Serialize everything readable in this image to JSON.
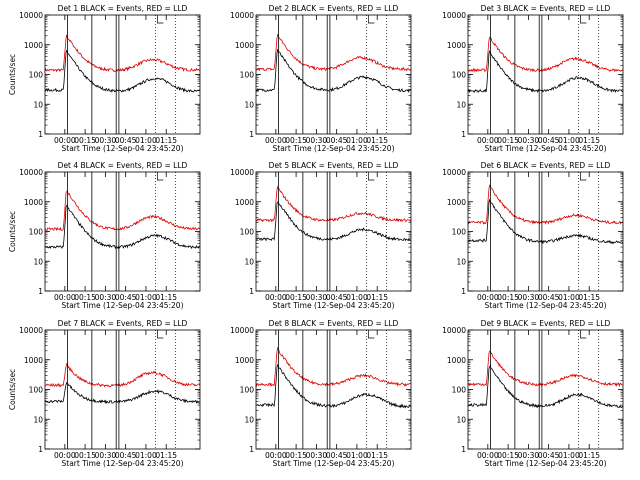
{
  "figure": {
    "start_time_label": "Start Time (12-Sep-04 23:45:20)",
    "ylabel": "Counts/sec",
    "series_note": "BLACK = Events, RED = LLD"
  },
  "chart_data": [
    {
      "type": "line",
      "title": "Det 1 BLACK = Events, RED = LLD",
      "xlabel": "Start Time (12-Sep-04 23:45:20)",
      "ylabel": "Counts/sec",
      "y_scale": "log",
      "ylim": [
        1,
        10000
      ],
      "y_ticks": [
        "1",
        "10",
        "100",
        "1000",
        "10000"
      ],
      "x_ticks": [
        "00:00",
        "00:15",
        "00:30",
        "00:45",
        "01:00",
        "01:15"
      ],
      "xlim_minutes": [
        -14.67,
        100
      ],
      "solid_vlines": [
        "00:02",
        "00:20",
        "00:38",
        "00:40"
      ],
      "dotted_vlines": [
        "01:07",
        "01:22"
      ],
      "series": [
        {
          "name": "RED = LLD",
          "color": "#dd0000",
          "baseline": 140,
          "peak": 2100,
          "peak_time": "00:01",
          "bump": 320,
          "bump_time": "01:05",
          "end": 160
        },
        {
          "name": "BLACK = Events",
          "color": "#000000",
          "baseline": 30,
          "peak": 650,
          "peak_time": "00:01",
          "bump": 75,
          "bump_time": "01:07",
          "end": 28
        }
      ]
    },
    {
      "type": "line",
      "title": "Det 2 BLACK = Events, RED = LLD",
      "xlabel": "Start Time (12-Sep-04 23:45:20)",
      "ylabel": "Counts/sec",
      "y_scale": "log",
      "ylim": [
        1,
        10000
      ],
      "y_ticks": [
        "1",
        "10",
        "100",
        "1000",
        "10000"
      ],
      "x_ticks": [
        "00:00",
        "00:15",
        "00:30",
        "00:45",
        "01:00",
        "01:15"
      ],
      "xlim_minutes": [
        -14.67,
        100
      ],
      "solid_vlines": [
        "00:02",
        "00:20",
        "00:38",
        "00:40"
      ],
      "dotted_vlines": [
        "01:07",
        "01:22"
      ],
      "series": [
        {
          "name": "RED = LLD",
          "color": "#dd0000",
          "baseline": 150,
          "peak": 2200,
          "peak_time": "00:01",
          "bump": 380,
          "bump_time": "01:03",
          "end": 170
        },
        {
          "name": "BLACK = Events",
          "color": "#000000",
          "baseline": 30,
          "peak": 700,
          "peak_time": "00:01",
          "bump": 85,
          "bump_time": "01:05",
          "end": 30
        }
      ]
    },
    {
      "type": "line",
      "title": "Det 3 BLACK = Events, RED = LLD",
      "xlabel": "Start Time (12-Sep-04 23:45:20)",
      "ylabel": "Counts/sec",
      "y_scale": "log",
      "ylim": [
        1,
        10000
      ],
      "y_ticks": [
        "1",
        "10",
        "100",
        "1000",
        "10000"
      ],
      "x_ticks": [
        "00:00",
        "00:15",
        "00:30",
        "00:45",
        "01:00",
        "01:15"
      ],
      "xlim_minutes": [
        -14.67,
        100
      ],
      "solid_vlines": [
        "00:02",
        "00:20",
        "00:38",
        "00:40"
      ],
      "dotted_vlines": [
        "01:07",
        "01:22"
      ],
      "series": [
        {
          "name": "RED = LLD",
          "color": "#dd0000",
          "baseline": 140,
          "peak": 1900,
          "peak_time": "00:01",
          "bump": 350,
          "bump_time": "01:05",
          "end": 150
        },
        {
          "name": "BLACK = Events",
          "color": "#000000",
          "baseline": 28,
          "peak": 600,
          "peak_time": "00:01",
          "bump": 80,
          "bump_time": "01:07",
          "end": 30
        }
      ]
    },
    {
      "type": "line",
      "title": "Det 4 BLACK = Events, RED = LLD",
      "xlabel": "Start Time (12-Sep-04 23:45:20)",
      "ylabel": "Counts/sec",
      "y_scale": "log",
      "ylim": [
        1,
        10000
      ],
      "y_ticks": [
        "1",
        "10",
        "100",
        "1000",
        "10000"
      ],
      "x_ticks": [
        "00:00",
        "00:15",
        "00:30",
        "00:45",
        "01:00",
        "01:15"
      ],
      "xlim_minutes": [
        -14.67,
        100
      ],
      "solid_vlines": [
        "00:02",
        "00:20",
        "00:38",
        "00:40"
      ],
      "dotted_vlines": [
        "01:07",
        "01:22"
      ],
      "series": [
        {
          "name": "RED = LLD",
          "color": "#dd0000",
          "baseline": 120,
          "peak": 2500,
          "peak_time": "00:01",
          "bump": 320,
          "bump_time": "01:05",
          "end": 140
        },
        {
          "name": "BLACK = Events",
          "color": "#000000",
          "baseline": 30,
          "peak": 800,
          "peak_time": "00:01",
          "bump": 75,
          "bump_time": "01:07",
          "end": 32
        }
      ]
    },
    {
      "type": "line",
      "title": "Det 5 BLACK = Events, RED = LLD",
      "xlabel": "Start Time (12-Sep-04 23:45:20)",
      "ylabel": "Counts/sec",
      "y_scale": "log",
      "ylim": [
        1,
        10000
      ],
      "y_ticks": [
        "1",
        "10",
        "100",
        "1000",
        "10000"
      ],
      "x_ticks": [
        "00:00",
        "00:15",
        "00:30",
        "00:45",
        "01:00",
        "01:15"
      ],
      "xlim_minutes": [
        -14.67,
        100
      ],
      "solid_vlines": [
        "00:02",
        "00:20",
        "00:38",
        "00:40"
      ],
      "dotted_vlines": [
        "01:07",
        "01:22"
      ],
      "series": [
        {
          "name": "RED = LLD",
          "color": "#dd0000",
          "baseline": 240,
          "peak": 3200,
          "peak_time": "00:01",
          "bump": 420,
          "bump_time": "01:03",
          "end": 270
        },
        {
          "name": "BLACK = Events",
          "color": "#000000",
          "baseline": 55,
          "peak": 1100,
          "peak_time": "00:01",
          "bump": 120,
          "bump_time": "01:05",
          "end": 55
        }
      ]
    },
    {
      "type": "line",
      "title": "Det 6 BLACK = Events, RED = LLD",
      "xlabel": "Start Time (12-Sep-04 23:45:20)",
      "ylabel": "Counts/sec",
      "y_scale": "log",
      "ylim": [
        1,
        10000
      ],
      "y_ticks": [
        "1",
        "10",
        "100",
        "1000",
        "10000"
      ],
      "x_ticks": [
        "00:00",
        "00:15",
        "00:30",
        "00:45",
        "01:00",
        "01:15"
      ],
      "xlim_minutes": [
        -14.67,
        100
      ],
      "solid_vlines": [
        "00:02",
        "00:20",
        "00:38",
        "00:40"
      ],
      "dotted_vlines": [
        "01:07",
        "01:22"
      ],
      "series": [
        {
          "name": "RED = LLD",
          "color": "#dd0000",
          "baseline": 200,
          "peak": 3500,
          "peak_time": "00:01",
          "bump": 360,
          "bump_time": "01:05",
          "end": 220
        },
        {
          "name": "BLACK = Events",
          "color": "#000000",
          "baseline": 50,
          "peak": 1200,
          "peak_time": "00:01",
          "bump": 75,
          "bump_time": "01:05",
          "end": 45
        }
      ]
    },
    {
      "type": "line",
      "title": "Det 7 BLACK = Events, RED = LLD",
      "xlabel": "Start Time (12-Sep-04 23:45:20)",
      "ylabel": "Counts/sec",
      "y_scale": "log",
      "ylim": [
        1,
        10000
      ],
      "y_ticks": [
        "1",
        "10",
        "100",
        "1000",
        "10000"
      ],
      "x_ticks": [
        "00:00",
        "00:15",
        "00:30",
        "00:45",
        "01:00",
        "01:15"
      ],
      "xlim_minutes": [
        -14.67,
        100
      ],
      "solid_vlines": [
        "00:02",
        "00:20",
        "00:38",
        "00:40"
      ],
      "dotted_vlines": [
        "01:07",
        "01:22"
      ],
      "series": [
        {
          "name": "RED = LLD",
          "color": "#dd0000",
          "baseline": 140,
          "peak": 700,
          "peak_time": "00:01",
          "bump": 380,
          "bump_time": "01:05",
          "end": 160
        },
        {
          "name": "BLACK = Events",
          "color": "#000000",
          "baseline": 40,
          "peak": 180,
          "peak_time": "00:01",
          "bump": 90,
          "bump_time": "01:07",
          "end": 40
        }
      ]
    },
    {
      "type": "line",
      "title": "Det 8 BLACK = Events, RED = LLD",
      "xlabel": "Start Time (12-Sep-04 23:45:20)",
      "ylabel": "Counts/sec",
      "y_scale": "log",
      "ylim": [
        1,
        10000
      ],
      "y_ticks": [
        "1",
        "10",
        "100",
        "1000",
        "10000"
      ],
      "x_ticks": [
        "00:00",
        "00:15",
        "00:30",
        "00:45",
        "01:00",
        "01:15"
      ],
      "xlim_minutes": [
        -14.67,
        100
      ],
      "solid_vlines": [
        "00:02",
        "00:20",
        "00:38",
        "00:40"
      ],
      "dotted_vlines": [
        "01:07",
        "01:22"
      ],
      "series": [
        {
          "name": "RED = LLD",
          "color": "#dd0000",
          "baseline": 150,
          "peak": 2400,
          "peak_time": "00:01",
          "bump": 300,
          "bump_time": "01:05",
          "end": 160
        },
        {
          "name": "BLACK = Events",
          "color": "#000000",
          "baseline": 30,
          "peak": 700,
          "peak_time": "00:01",
          "bump": 70,
          "bump_time": "01:07",
          "end": 28
        }
      ]
    },
    {
      "type": "line",
      "title": "Det 9 BLACK = Events, RED = LLD",
      "xlabel": "Start Time (12-Sep-04 23:45:20)",
      "ylabel": "Counts/sec",
      "y_scale": "log",
      "ylim": [
        1,
        10000
      ],
      "y_ticks": [
        "1",
        "10",
        "100",
        "1000",
        "10000"
      ],
      "x_ticks": [
        "00:00",
        "00:15",
        "00:30",
        "00:45",
        "01:00",
        "01:15"
      ],
      "xlim_minutes": [
        -14.67,
        100
      ],
      "solid_vlines": [
        "00:02",
        "00:20",
        "00:38",
        "00:40"
      ],
      "dotted_vlines": [
        "01:07",
        "01:22"
      ],
      "series": [
        {
          "name": "RED = LLD",
          "color": "#dd0000",
          "baseline": 150,
          "peak": 2000,
          "peak_time": "00:01",
          "bump": 300,
          "bump_time": "01:05",
          "end": 160
        },
        {
          "name": "BLACK = Events",
          "color": "#000000",
          "baseline": 30,
          "peak": 650,
          "peak_time": "00:01",
          "bump": 70,
          "bump_time": "01:07",
          "end": 28
        }
      ]
    }
  ]
}
